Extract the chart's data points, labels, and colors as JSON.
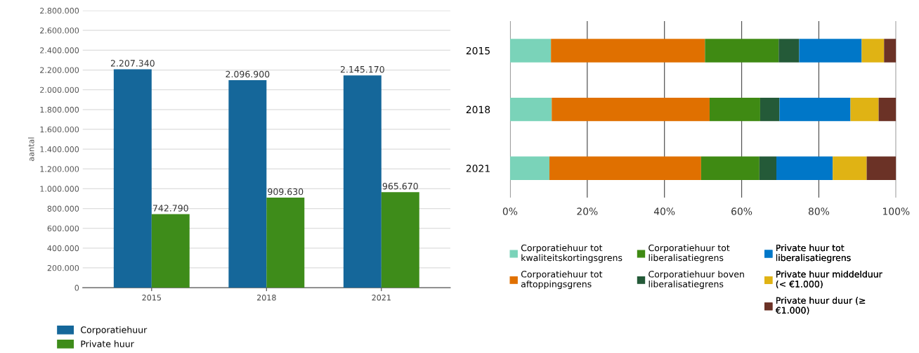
{
  "chart_data": [
    {
      "type": "bar",
      "ylabel": "aantal",
      "categories": [
        "2015",
        "2018",
        "2021"
      ],
      "series": [
        {
          "name": "Corporatiehuur",
          "color": "#15679a",
          "values": [
            2207340,
            2096900,
            2145170
          ],
          "value_labels": [
            "2.207.340",
            "2.096.900",
            "2.145.170"
          ]
        },
        {
          "name": "Private huur",
          "color": "#3e8c1a",
          "values": [
            742790,
            909630,
            965670
          ],
          "value_labels": [
            "742.790",
            "909.630",
            "965.670"
          ]
        }
      ],
      "ylim": [
        0,
        2800000
      ],
      "yticks": [
        {
          "value": 0,
          "label": "0"
        },
        {
          "value": 200000,
          "label": "200.000"
        },
        {
          "value": 400000,
          "label": "400.000"
        },
        {
          "value": 600000,
          "label": "600.000"
        },
        {
          "value": 800000,
          "label": "800.000"
        },
        {
          "value": 1000000,
          "label": "1.000.000"
        },
        {
          "value": 1200000,
          "label": "1.200.000"
        },
        {
          "value": 1400000,
          "label": "1.400.000"
        },
        {
          "value": 1600000,
          "label": "1.600.000"
        },
        {
          "value": 1800000,
          "label": "1.800.000"
        },
        {
          "value": 2000000,
          "label": "2.000.000"
        },
        {
          "value": 2200000,
          "label": "2.200.000"
        },
        {
          "value": 2400000,
          "label": "2.400.000"
        },
        {
          "value": 2600000,
          "label": "2.600.000"
        },
        {
          "value": 2800000,
          "label": "2.800.000"
        }
      ],
      "grid": "y",
      "legend": "bottom left"
    },
    {
      "type": "bar",
      "orientation": "horizontal",
      "stacked": true,
      "categories": [
        "2015",
        "2018",
        "2021"
      ],
      "series": [
        {
          "name": "Corporatiehuur tot kwaliteitskortingsgrens",
          "color": "#7ad3b9",
          "values": [
            10.6,
            10.8,
            10.2
          ]
        },
        {
          "name": "Corporatiehuur tot aftoppingsgrens",
          "color": "#e07000",
          "values": [
            39.9,
            40.9,
            39.3
          ]
        },
        {
          "name": "Corporatiehuur tot liberalisatiegrens",
          "color": "#3f8a13",
          "values": [
            19.1,
            13.1,
            15.1
          ]
        },
        {
          "name": "Corporatiehuur boven liberalisatiegrens",
          "color": "#245a38",
          "values": [
            5.3,
            5.0,
            4.4
          ]
        },
        {
          "name": "Private huur tot liberalisatiegrens",
          "color": "#0077c8",
          "values": [
            16.2,
            18.4,
            14.6
          ]
        },
        {
          "name": "Private huur middelduur (< €1.000)",
          "color": "#e0b314",
          "values": [
            5.8,
            7.3,
            8.8
          ]
        },
        {
          "name": "Private huur duur (≥ €1.000)",
          "color": "#6b3226",
          "values": [
            3.1,
            4.5,
            7.6
          ]
        }
      ],
      "xlim": [
        0,
        100
      ],
      "xticks": [
        {
          "value": 0,
          "label": "0%"
        },
        {
          "value": 20,
          "label": "20%"
        },
        {
          "value": 40,
          "label": "40%"
        },
        {
          "value": 60,
          "label": "60%"
        },
        {
          "value": 80,
          "label": "80%"
        },
        {
          "value": 100,
          "label": "100%"
        }
      ],
      "grid": "x",
      "legend": "bottom"
    }
  ]
}
